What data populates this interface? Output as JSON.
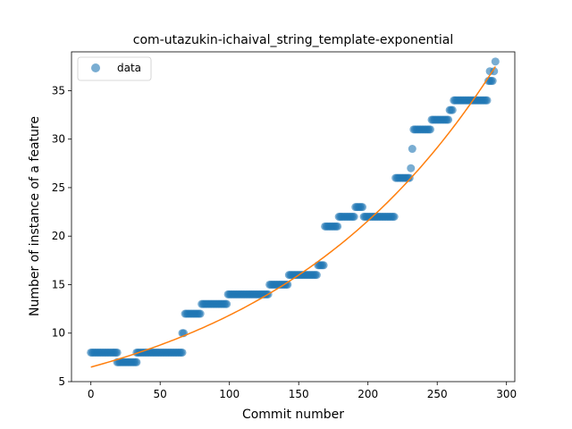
{
  "chart_data": {
    "type": "scatter",
    "title": "com-utazukin-ichaival_string_template-exponential",
    "xlabel": "Commit number",
    "ylabel": "Number of instance of a feature",
    "xlim": [
      -14,
      306
    ],
    "ylim": [
      5,
      39
    ],
    "xticks": [
      0,
      50,
      100,
      150,
      200,
      250,
      300
    ],
    "yticks": [
      5,
      10,
      15,
      20,
      25,
      30,
      35
    ],
    "grid": false,
    "legend": {
      "placement": "top-left",
      "entries": [
        "data"
      ]
    },
    "series": [
      {
        "name": "data",
        "kind": "scatter",
        "color": "#1f77b4",
        "segments": [
          {
            "x_start": 0,
            "x_end": 19,
            "y": 8
          },
          {
            "x_start": 19,
            "x_end": 33,
            "y": 7
          },
          {
            "x_start": 33,
            "x_end": 66,
            "y": 8
          },
          {
            "x_start": 66,
            "x_end": 67,
            "y": 10
          },
          {
            "x_start": 68,
            "x_end": 79,
            "y": 12
          },
          {
            "x_start": 80,
            "x_end": 98,
            "y": 13
          },
          {
            "x_start": 99,
            "x_end": 128,
            "y": 14
          },
          {
            "x_start": 129,
            "x_end": 142,
            "y": 15
          },
          {
            "x_start": 143,
            "x_end": 163,
            "y": 16
          },
          {
            "x_start": 164,
            "x_end": 168,
            "y": 17
          },
          {
            "x_start": 169,
            "x_end": 178,
            "y": 21
          },
          {
            "x_start": 179,
            "x_end": 190,
            "y": 22
          },
          {
            "x_start": 191,
            "x_end": 196,
            "y": 23
          },
          {
            "x_start": 197,
            "x_end": 219,
            "y": 22
          },
          {
            "x_start": 220,
            "x_end": 230,
            "y": 26
          },
          {
            "x_start": 231,
            "x_end": 231,
            "y": 27
          },
          {
            "x_start": 232,
            "x_end": 232,
            "y": 29
          },
          {
            "x_start": 233,
            "x_end": 245,
            "y": 31
          },
          {
            "x_start": 246,
            "x_end": 258,
            "y": 32
          },
          {
            "x_start": 259,
            "x_end": 261,
            "y": 33
          },
          {
            "x_start": 262,
            "x_end": 286,
            "y": 34
          },
          {
            "x_start": 287,
            "x_end": 290,
            "y": 36
          },
          {
            "x_start": 288,
            "x_end": 288,
            "y": 37
          },
          {
            "x_start": 291,
            "x_end": 291,
            "y": 37
          },
          {
            "x_start": 292,
            "x_end": 292,
            "y": 38
          }
        ]
      },
      {
        "name": "",
        "kind": "line",
        "color": "#ff7f0e",
        "model": "exponential",
        "a": 6.5,
        "b": 0.006,
        "x_range": [
          0,
          292
        ]
      }
    ]
  }
}
